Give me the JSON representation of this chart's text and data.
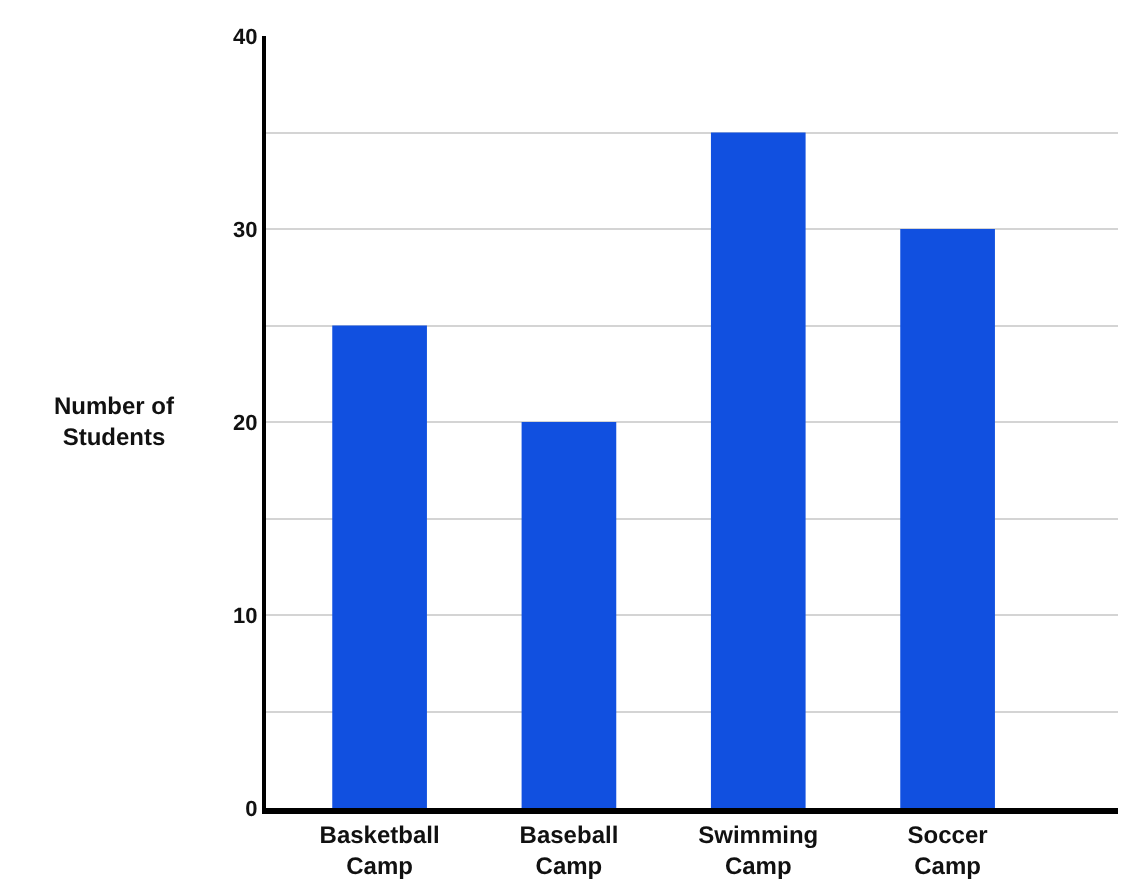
{
  "chart_data": {
    "type": "bar",
    "ylabel": "Number of Students",
    "categories": [
      "Basketball Camp",
      "Baseball Camp",
      "Swimming Camp",
      "Soccer Camp"
    ],
    "values": [
      25,
      20,
      35,
      30
    ],
    "color": "#1150e0",
    "ylim": [
      0,
      40
    ],
    "yticks": [
      0,
      {
        "value": 5,
        "label": null
      },
      10,
      {
        "value": 15,
        "label": null
      },
      20,
      {
        "value": 25,
        "label": null
      },
      30,
      {
        "value": 35,
        "label": null
      },
      40
    ],
    "grid": "y"
  }
}
